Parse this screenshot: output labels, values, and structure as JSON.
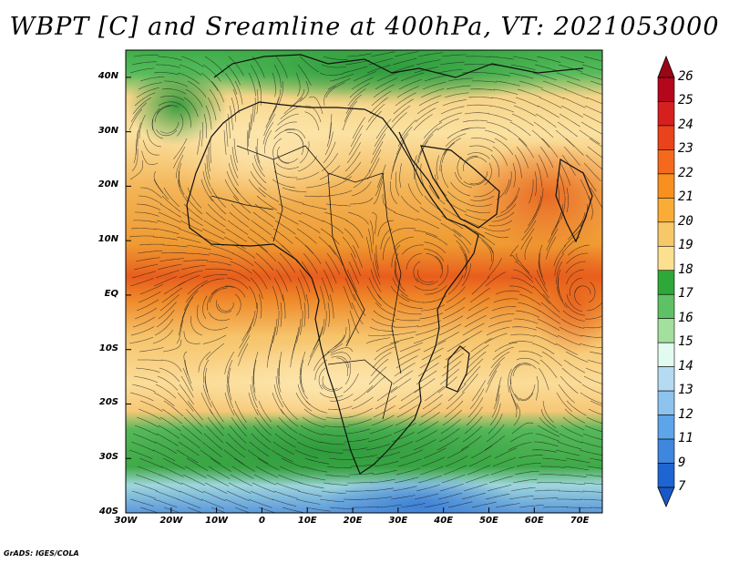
{
  "title": "WBPT [C] and Sreamline at 400hPa, VT: 2021053000",
  "credit": "GrADS: IGES/COLA",
  "lat_labels": [
    "40N",
    "30N",
    "20N",
    "10N",
    "EQ",
    "10S",
    "20S",
    "30S",
    "40S"
  ],
  "lon_labels": [
    "30W",
    "20W",
    "10W",
    "0",
    "10E",
    "20E",
    "30E",
    "40E",
    "50E",
    "60E",
    "70E"
  ],
  "colorbar": {
    "labels": [
      "26",
      "25",
      "24",
      "23",
      "22",
      "21",
      "20",
      "19",
      "18",
      "17",
      "16",
      "15",
      "14",
      "13",
      "12",
      "11",
      "9",
      "7"
    ],
    "colors": [
      "#b4071c",
      "#d61f1f",
      "#e9431b",
      "#f4691e",
      "#f7901e",
      "#f9ad36",
      "#f6c86a",
      "#fde08f",
      "#2fa83a",
      "#5fc165",
      "#a3e09e",
      "#e2fbf1",
      "#b5dbf2",
      "#8dc3ef",
      "#5ea4e8",
      "#3f86df",
      "#1f65d2"
    ]
  },
  "map": {
    "lon_range": [
      -30,
      75
    ],
    "lat_range": [
      -40,
      45
    ]
  }
}
